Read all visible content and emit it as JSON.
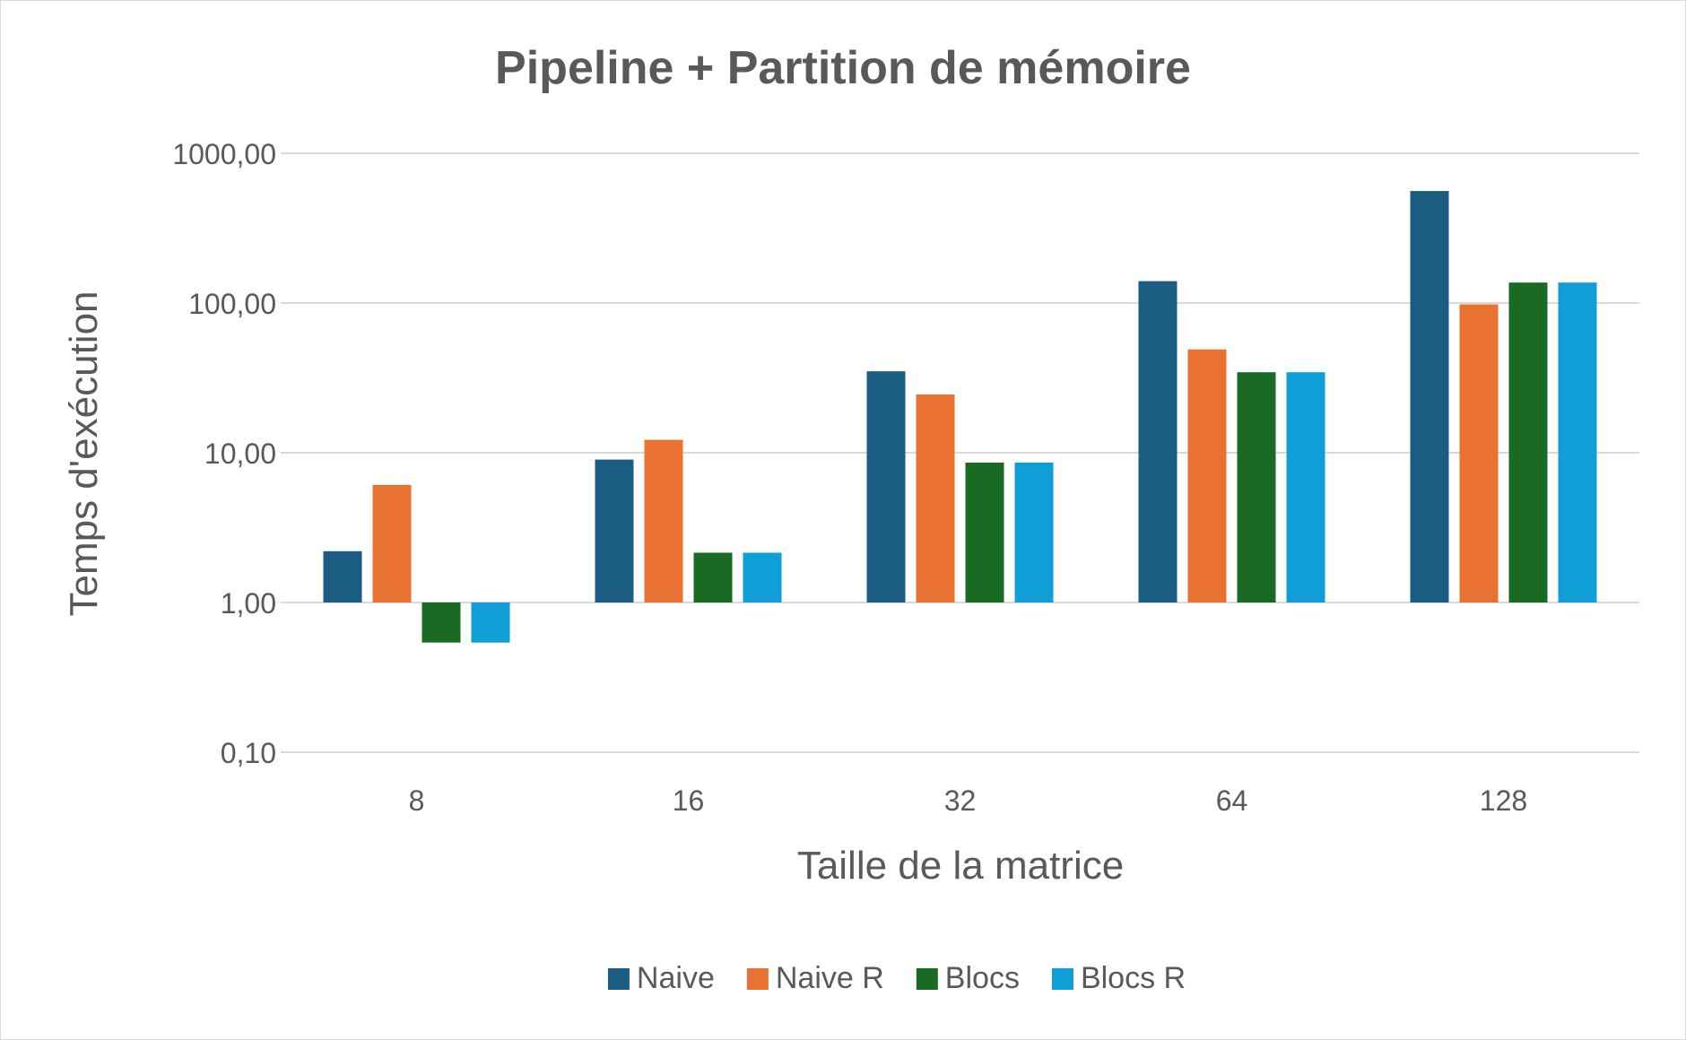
{
  "chart_data": {
    "type": "bar",
    "title": "Pipeline + Partition de mémoire",
    "xlabel": "Taille de la matrice",
    "ylabel": "Temps d'exécution",
    "yscale": "log",
    "ylim": [
      0.1,
      1000
    ],
    "yticks": [
      0.1,
      1,
      10,
      100,
      1000
    ],
    "ytick_labels": [
      "0,10",
      "1,00",
      "10,00",
      "100,00",
      "1000,00"
    ],
    "baseline": 1,
    "grid": true,
    "legend_position": "bottom",
    "categories": [
      "8",
      "16",
      "32",
      "64",
      "128"
    ],
    "series": [
      {
        "name": "Naive",
        "color": "#1a5c82",
        "values": [
          2.2,
          9.0,
          35,
          140,
          560
        ]
      },
      {
        "name": "Naive R",
        "color": "#e97132",
        "values": [
          6.1,
          12.2,
          24.5,
          49,
          98
        ]
      },
      {
        "name": "Blocs",
        "color": "#196b24",
        "values": [
          0.54,
          2.15,
          8.6,
          34.5,
          137
        ]
      },
      {
        "name": "Blocs R",
        "color": "#0f9ed5",
        "values": [
          0.54,
          2.15,
          8.6,
          34.5,
          137
        ]
      }
    ]
  }
}
